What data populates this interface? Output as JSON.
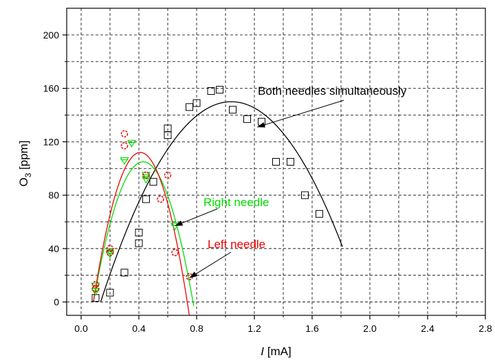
{
  "chart_data": {
    "type": "scatter",
    "x_axis": {
      "label_italic": "I",
      "label_rest": " [mA]",
      "range": [
        -0.1,
        2.8
      ],
      "ticks": [
        0.0,
        0.4,
        0.8,
        1.2,
        1.6,
        2.0,
        2.4,
        2.8
      ],
      "tick_labels": [
        "0.0",
        "0.4",
        "0.8",
        "1.2",
        "1.6",
        "2.0",
        "2.4",
        "2.8"
      ]
    },
    "y_axis": {
      "label_main": "O",
      "label_sub": "3",
      "label_rest": " [ppm]",
      "range": [
        -10,
        220
      ],
      "ticks": [
        0,
        40,
        80,
        120,
        160,
        200
      ],
      "tick_labels": [
        "0",
        "40",
        "80",
        "120",
        "160",
        "200"
      ]
    },
    "grid": true,
    "series": [
      {
        "key": "both",
        "color": "#000000",
        "marker": "square",
        "points": [
          [
            0.1,
            3
          ],
          [
            0.2,
            7
          ],
          [
            0.3,
            22
          ],
          [
            0.4,
            44
          ],
          [
            0.4,
            52
          ],
          [
            0.45,
            77
          ],
          [
            0.5,
            90
          ],
          [
            0.6,
            125
          ],
          [
            0.6,
            130
          ],
          [
            0.75,
            146
          ],
          [
            0.8,
            149
          ],
          [
            0.9,
            158
          ],
          [
            0.96,
            159
          ],
          [
            1.05,
            144
          ],
          [
            1.15,
            137
          ],
          [
            1.25,
            135
          ],
          [
            1.35,
            105
          ],
          [
            1.45,
            105
          ],
          [
            1.55,
            80
          ],
          [
            1.65,
            66
          ]
        ],
        "fit": {
          "form": "quadratic",
          "vertex_x": 1.04,
          "vertex_y": 150,
          "x_from": 0.135,
          "x_to": 1.81
        }
      },
      {
        "key": "right",
        "color": "#00dd00",
        "marker": "triangle-down",
        "points": [
          [
            0.1,
            8
          ],
          [
            0.1,
            12
          ],
          [
            0.2,
            36
          ],
          [
            0.2,
            38
          ],
          [
            0.3,
            106
          ],
          [
            0.35,
            119
          ],
          [
            0.45,
            95
          ],
          [
            0.45,
            92
          ],
          [
            0.65,
            57
          ]
        ],
        "fit": {
          "form": "quadratic",
          "vertex_x": 0.43,
          "vertex_y": 105,
          "x_from": 0.085,
          "x_to": 0.78
        }
      },
      {
        "key": "left",
        "color": "#ee0000",
        "marker": "circle",
        "points": [
          [
            0.1,
            10
          ],
          [
            0.1,
            13
          ],
          [
            0.2,
            37
          ],
          [
            0.2,
            40
          ],
          [
            0.3,
            117
          ],
          [
            0.3,
            126
          ],
          [
            0.45,
            95
          ],
          [
            0.55,
            77
          ],
          [
            0.6,
            95
          ],
          [
            0.65,
            37
          ],
          [
            0.75,
            19
          ]
        ],
        "fit": {
          "form": "quadratic",
          "vertex_x": 0.41,
          "vertex_y": 112,
          "x_from": 0.085,
          "x_to": 0.79
        }
      }
    ],
    "annotations": [
      {
        "key": "both",
        "text": "Both needles simultaneously",
        "color": "#000000",
        "arrow_to": [
          1.22,
          131
        ]
      },
      {
        "key": "right",
        "text": "Right needle",
        "color": "#00dd00",
        "arrow_to": [
          0.65,
          57
        ]
      },
      {
        "key": "left",
        "text": "Left needle",
        "color": "#ee0000",
        "arrow_to": [
          0.75,
          18
        ]
      }
    ]
  }
}
